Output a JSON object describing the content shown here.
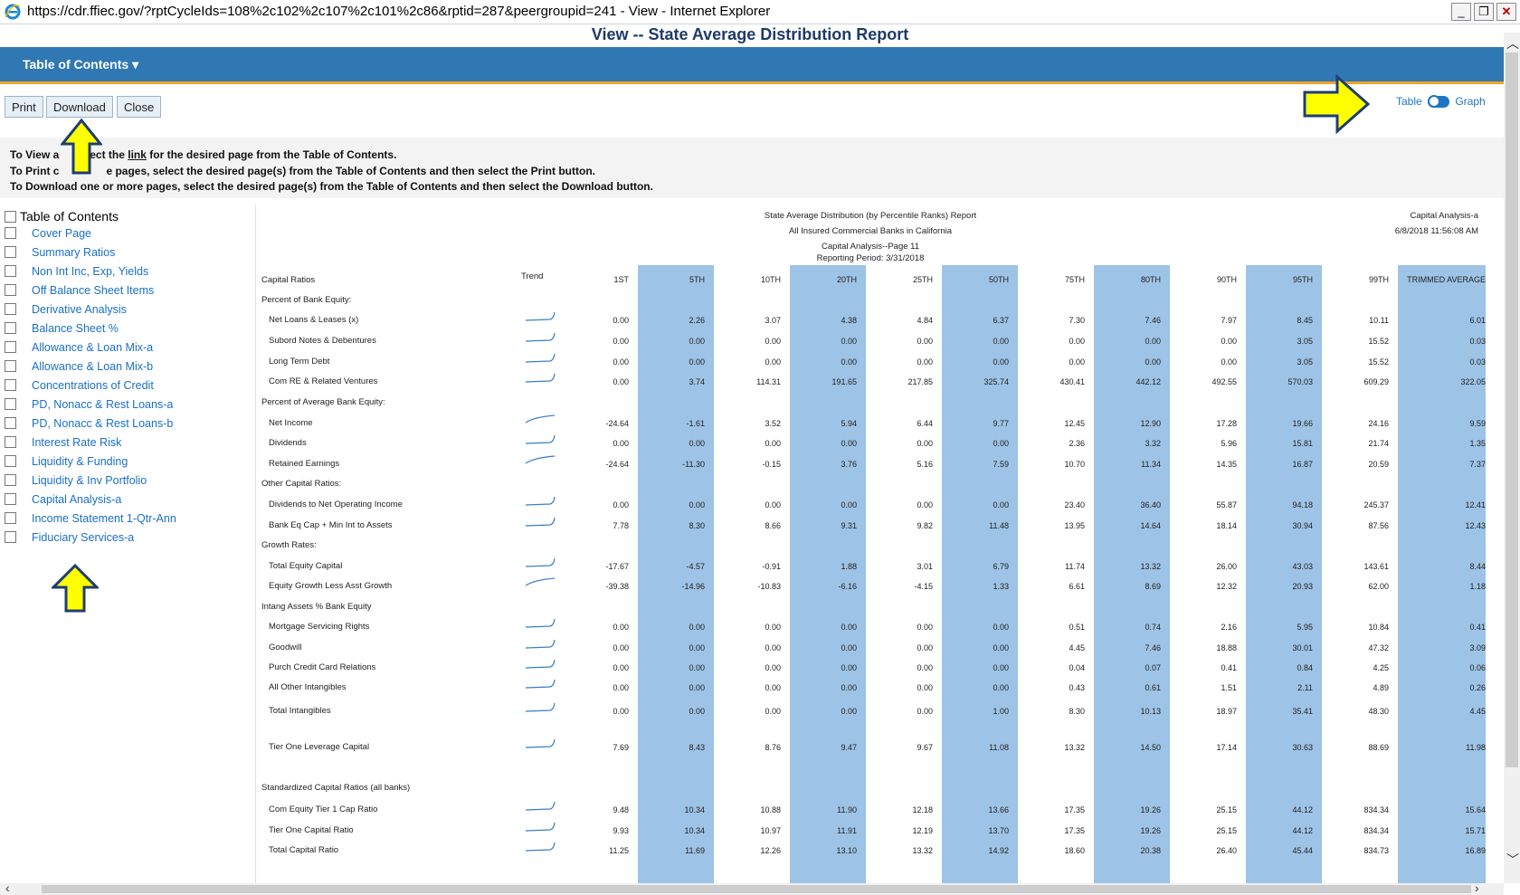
{
  "window": {
    "title": "https://cdr.ffiec.gov/?rptCycleIds=108%2c102%2c107%2c101%2c86&rptid=287&peergroupid=241 - View  - Internet Explorer",
    "minimize": "_",
    "restore": "❐",
    "close": "✕"
  },
  "page_title": "View -- State Average Distribution Report",
  "nav": {
    "toc_menu": "Table of Contents ▾"
  },
  "toolbar": {
    "print": "Print",
    "download": "Download",
    "close": "Close"
  },
  "toggle": {
    "table": "Table",
    "graph": "Graph"
  },
  "instructions": {
    "line1_a": "To View a",
    "line1_b": "ect the ",
    "line1_link": "link",
    "line1_c": " for the desired page from the Table of Contents.",
    "line2_a": "To Print c",
    "line2_b": "e pages, select the desired page(s) from the Table of Contents and then select the Print button.",
    "line3": "To Download one or more pages, select the desired page(s) from the Table of Contents and then select the Download button."
  },
  "toc": {
    "heading": "Table of Contents",
    "items": [
      "Cover Page",
      "Summary Ratios",
      "Non Int Inc, Exp, Yields",
      "Off Balance Sheet Items",
      "Derivative Analysis",
      "Balance Sheet %",
      "Allowance & Loan Mix-a",
      "Allowance & Loan Mix-b",
      "Concentrations of Credit",
      "PD, Nonacc & Rest Loans-a",
      "PD, Nonacc & Rest Loans-b",
      "Interest Rate Risk",
      "Liquidity & Funding",
      "Liquidity & Inv Portfolio",
      "Capital Analysis-a",
      "Income Statement 1-Qtr-Ann",
      "Fiduciary Services-a"
    ]
  },
  "report": {
    "title1": "State Average Distribution (by Percentile Ranks) Report",
    "title2": "All Insured Commercial Banks in California",
    "title3": "Capital Analysis--Page 11",
    "title4": "Reporting Period: 3/31/2018",
    "right1": "Capital Analysis-a",
    "right2": "6/8/2018 11:56:08 AM",
    "section": "Capital Ratios",
    "trend_label": "Trend",
    "columns": [
      "1ST",
      "5TH",
      "10TH",
      "20TH",
      "25TH",
      "50TH",
      "75TH",
      "80TH",
      "90TH",
      "95TH",
      "99TH",
      "TRIMMED AVERAGE"
    ],
    "rows": [
      {
        "label": "Percent of Bank Equity:",
        "group": true
      },
      {
        "label": "Net Loans & Leases (x)",
        "trend": "up",
        "values": [
          "0.00",
          "2.26",
          "3.07",
          "4.38",
          "4.84",
          "6.37",
          "7.30",
          "7.46",
          "7.97",
          "8.45",
          "10.11",
          "6.01"
        ]
      },
      {
        "label": "Subord Notes & Debentures",
        "trend": "up",
        "values": [
          "0.00",
          "0.00",
          "0.00",
          "0.00",
          "0.00",
          "0.00",
          "0.00",
          "0.00",
          "0.00",
          "3.05",
          "15.52",
          "0.03"
        ]
      },
      {
        "label": "Long Term Debt",
        "trend": "up",
        "values": [
          "0.00",
          "0.00",
          "0.00",
          "0.00",
          "0.00",
          "0.00",
          "0.00",
          "0.00",
          "0.00",
          "3.05",
          "15.52",
          "0.03"
        ]
      },
      {
        "label": "Com RE & Related Ventures",
        "trend": "up",
        "values": [
          "0.00",
          "3.74",
          "114.31",
          "191.65",
          "217.85",
          "325.74",
          "430.41",
          "442.12",
          "492.55",
          "570.03",
          "609.29",
          "322.05"
        ]
      },
      {
        "label": "Percent of Average Bank Equity:",
        "group": true
      },
      {
        "label": "Net Income",
        "trend": "flat",
        "values": [
          "-24.64",
          "-1.61",
          "3.52",
          "5.94",
          "6.44",
          "9.77",
          "12.45",
          "12.90",
          "17.28",
          "19.66",
          "24.16",
          "9.59"
        ]
      },
      {
        "label": "Dividends",
        "trend": "up",
        "values": [
          "0.00",
          "0.00",
          "0.00",
          "0.00",
          "0.00",
          "0.00",
          "2.36",
          "3.32",
          "5.96",
          "15.81",
          "21.74",
          "1.35"
        ]
      },
      {
        "label": "Retained Earnings",
        "trend": "flat",
        "values": [
          "-24.64",
          "-11.30",
          "-0.15",
          "3.76",
          "5.16",
          "7.59",
          "10.70",
          "11.34",
          "14.35",
          "16.87",
          "20.59",
          "7.37"
        ]
      },
      {
        "label": "Other Capital Ratios:",
        "group": true
      },
      {
        "label": "Dividends to Net Operating Income",
        "trend": "up",
        "values": [
          "0.00",
          "0.00",
          "0.00",
          "0.00",
          "0.00",
          "0.00",
          "23.40",
          "36.40",
          "55.87",
          "94.18",
          "245.37",
          "12.41"
        ]
      },
      {
        "label": "Bank Eq Cap + Min Int to Assets",
        "trend": "up",
        "values": [
          "7.78",
          "8.30",
          "8.66",
          "9.31",
          "9.82",
          "11.48",
          "13.95",
          "14.64",
          "18.14",
          "30.94",
          "87.56",
          "12.43"
        ]
      },
      {
        "label": "Growth Rates:",
        "group": true
      },
      {
        "label": "Total Equity Capital",
        "trend": "up",
        "values": [
          "-17.67",
          "-4.57",
          "-0.91",
          "1.88",
          "3.01",
          "6.79",
          "11.74",
          "13.32",
          "26.00",
          "43.03",
          "143.61",
          "8.44"
        ]
      },
      {
        "label": "Equity Growth Less Asst Growth",
        "trend": "flat",
        "values": [
          "-39.38",
          "-14.96",
          "-10.83",
          "-6.16",
          "-4.15",
          "1.33",
          "6.61",
          "8.69",
          "12.32",
          "20.93",
          "62.00",
          "1.18"
        ]
      },
      {
        "label": "Intang Assets % Bank Equity",
        "group": true
      },
      {
        "label": "Mortgage Servicing Rights",
        "trend": "up",
        "values": [
          "0.00",
          "0.00",
          "0.00",
          "0.00",
          "0.00",
          "0.00",
          "0.51",
          "0.74",
          "2.16",
          "5.95",
          "10.84",
          "0.41"
        ]
      },
      {
        "label": "Goodwill",
        "trend": "up",
        "values": [
          "0.00",
          "0.00",
          "0.00",
          "0.00",
          "0.00",
          "0.00",
          "4.45",
          "7.46",
          "18.88",
          "30.01",
          "47.32",
          "3.09"
        ]
      },
      {
        "label": "Purch Credit Card Relations",
        "trend": "up",
        "values": [
          "0.00",
          "0.00",
          "0.00",
          "0.00",
          "0.00",
          "0.00",
          "0.04",
          "0.07",
          "0.41",
          "0.84",
          "4.25",
          "0.06"
        ]
      },
      {
        "label": "All Other Intangibles",
        "trend": "up",
        "values": [
          "0.00",
          "0.00",
          "0.00",
          "0.00",
          "0.00",
          "0.00",
          "0.43",
          "0.61",
          "1.51",
          "2.11",
          "4.89",
          "0.26"
        ]
      },
      {
        "label": "Total Intangibles",
        "trend": "up",
        "values": [
          "0.00",
          "0.00",
          "0.00",
          "0.00",
          "0.00",
          "1.00",
          "8.30",
          "10.13",
          "18.97",
          "35.41",
          "48.30",
          "4.45"
        ]
      },
      {
        "label": "Tier One Leverage Capital",
        "trend": "up",
        "values": [
          "7.69",
          "8.43",
          "8.76",
          "9.47",
          "9.67",
          "11.08",
          "13.32",
          "14.50",
          "17.14",
          "30.63",
          "88.69",
          "11.98"
        ]
      },
      {
        "label": "Standardized Capital Ratios (all banks)",
        "group": true
      },
      {
        "label": "Com Equity Tier 1 Cap Ratio",
        "trend": "up",
        "values": [
          "9.48",
          "10.34",
          "10.88",
          "11.90",
          "12.18",
          "13.66",
          "17.35",
          "19.26",
          "25.15",
          "44.12",
          "834.34",
          "15.64"
        ]
      },
      {
        "label": "Tier One Capital Ratio",
        "trend": "up",
        "values": [
          "9.93",
          "10.34",
          "10.97",
          "11.91",
          "12.19",
          "13.70",
          "17.35",
          "19.26",
          "25.15",
          "44.12",
          "834.34",
          "15.71"
        ]
      },
      {
        "label": "Total Capital Ratio",
        "trend": "up",
        "values": [
          "11.25",
          "11.69",
          "12.26",
          "13.10",
          "13.32",
          "14.92",
          "18.60",
          "20.38",
          "26.40",
          "45.44",
          "834.73",
          "16.89"
        ]
      }
    ]
  },
  "colors": {
    "nav_blue": "#2f78b4",
    "nav_underline": "#f2a22a",
    "column_highlight": "#9dc3e6",
    "link": "#1a6fc7",
    "arrow_yellow": "#ffff00",
    "arrow_outline": "#1f3d73"
  }
}
